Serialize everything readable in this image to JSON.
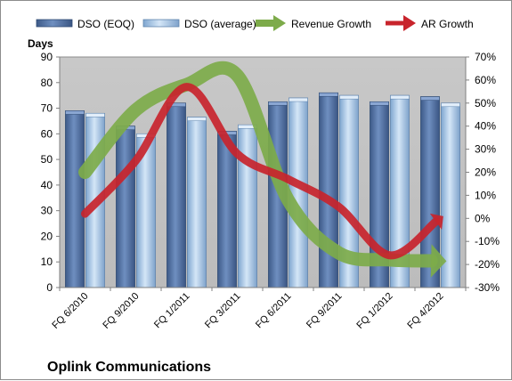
{
  "chart_data": {
    "type": "bar",
    "title": "Oplink Communications",
    "ylabel": "Days",
    "ylim": [
      0,
      90
    ],
    "y_ticks": [
      "0",
      "10",
      "20",
      "30",
      "40",
      "50",
      "60",
      "70",
      "80",
      "90"
    ],
    "y2lim": [
      -30,
      70
    ],
    "y2_ticks": [
      "-30%",
      "-20%",
      "-10%",
      "0%",
      "10%",
      "20%",
      "30%",
      "40%",
      "50%",
      "60%",
      "70%"
    ],
    "legend_position": "top",
    "categories": [
      "FQ 6/2010",
      "FQ 9/2010",
      "FQ 1/2011",
      "FQ 3/2011",
      "FQ 6/2011",
      "FQ 9/2011",
      "FQ 1/2012",
      "FQ 4/2012"
    ],
    "series": [
      {
        "name": "DSO (EOQ)",
        "kind": "bar",
        "axis": "left",
        "color": "#4a6a9c",
        "values": [
          69,
          63,
          72,
          61,
          72.5,
          76,
          72.5,
          74.5
        ]
      },
      {
        "name": "DSO (average)",
        "kind": "bar",
        "axis": "left",
        "color": "#a9c8e8",
        "values": [
          68,
          60,
          66.5,
          63.5,
          74,
          75,
          75,
          72
        ]
      },
      {
        "name": "Revenue Growth",
        "kind": "arrow",
        "axis": "right",
        "color": "#7dab4a",
        "values": [
          20,
          47,
          58,
          62,
          8,
          -15,
          -18,
          -18.5
        ]
      },
      {
        "name": "AR Growth",
        "kind": "arrow",
        "axis": "right",
        "color": "#c8242c",
        "values": [
          2,
          25,
          57,
          28,
          17,
          5,
          -16,
          0
        ]
      }
    ],
    "grid": false,
    "plot_background": "#c0c0c0"
  }
}
